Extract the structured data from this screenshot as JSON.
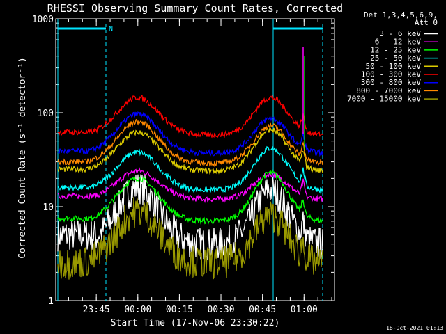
{
  "chart_data": {
    "type": "line",
    "title": "RHESSI Observing Summary Count Rates, Corrected",
    "xlabel": "Start Time (17-Nov-06 23:30:22)",
    "ylabel": "Corrected Count Rate (s⁻¹ detector⁻¹)",
    "y_scale": "log",
    "ylim": [
      1,
      1000
    ],
    "xlim": [
      "23:30:22",
      "01:11:00"
    ],
    "x_ticks": [
      "23:45",
      "00:00",
      "00:15",
      "00:30",
      "00:45",
      "01:00"
    ],
    "y_ticks": [
      "1",
      "10",
      "100",
      "1000"
    ],
    "legend_header": [
      "Det 1,3,4,5,6,9,",
      "Att 0"
    ],
    "legend_position": "top-right",
    "footer": "18-Oct-2021 01:13",
    "night_marker_label": "N",
    "series": [
      {
        "name": "3 - 6 keV",
        "color": "#ffffff",
        "peaks": [
          16,
          15
        ],
        "trough": 4,
        "start": 5
      },
      {
        "name": "6 - 12 keV",
        "color": "#ff00ff",
        "peaks": [
          24,
          22
        ],
        "trough": 12,
        "start": 13
      },
      {
        "name": "12 - 25 keV",
        "color": "#00ff00",
        "peaks": [
          20,
          23
        ],
        "trough": 7,
        "start": 7.5
      },
      {
        "name": "25 - 50 keV",
        "color": "#00ffff",
        "peaks": [
          38,
          42
        ],
        "trough": 15,
        "start": 16
      },
      {
        "name": "50 - 100 keV",
        "color": "#ddcc00",
        "peaks": [
          62,
          66
        ],
        "trough": 24,
        "start": 25
      },
      {
        "name": "100 - 300 keV",
        "color": "#ff0000",
        "peaks": [
          145,
          145
        ],
        "trough": 58,
        "start": 62
      },
      {
        "name": "300 - 800 keV",
        "color": "#0000ff",
        "peaks": [
          97,
          87
        ],
        "trough": 37,
        "start": 39
      },
      {
        "name": "800 - 7000 keV",
        "color": "#ff8800",
        "peaks": [
          80,
          73
        ],
        "trough": 29,
        "start": 30
      },
      {
        "name": "7000 - 15000 keV",
        "color": "#999900",
        "peaks": [
          9,
          8
        ],
        "trough": 2.5,
        "start": 2.5
      }
    ]
  }
}
